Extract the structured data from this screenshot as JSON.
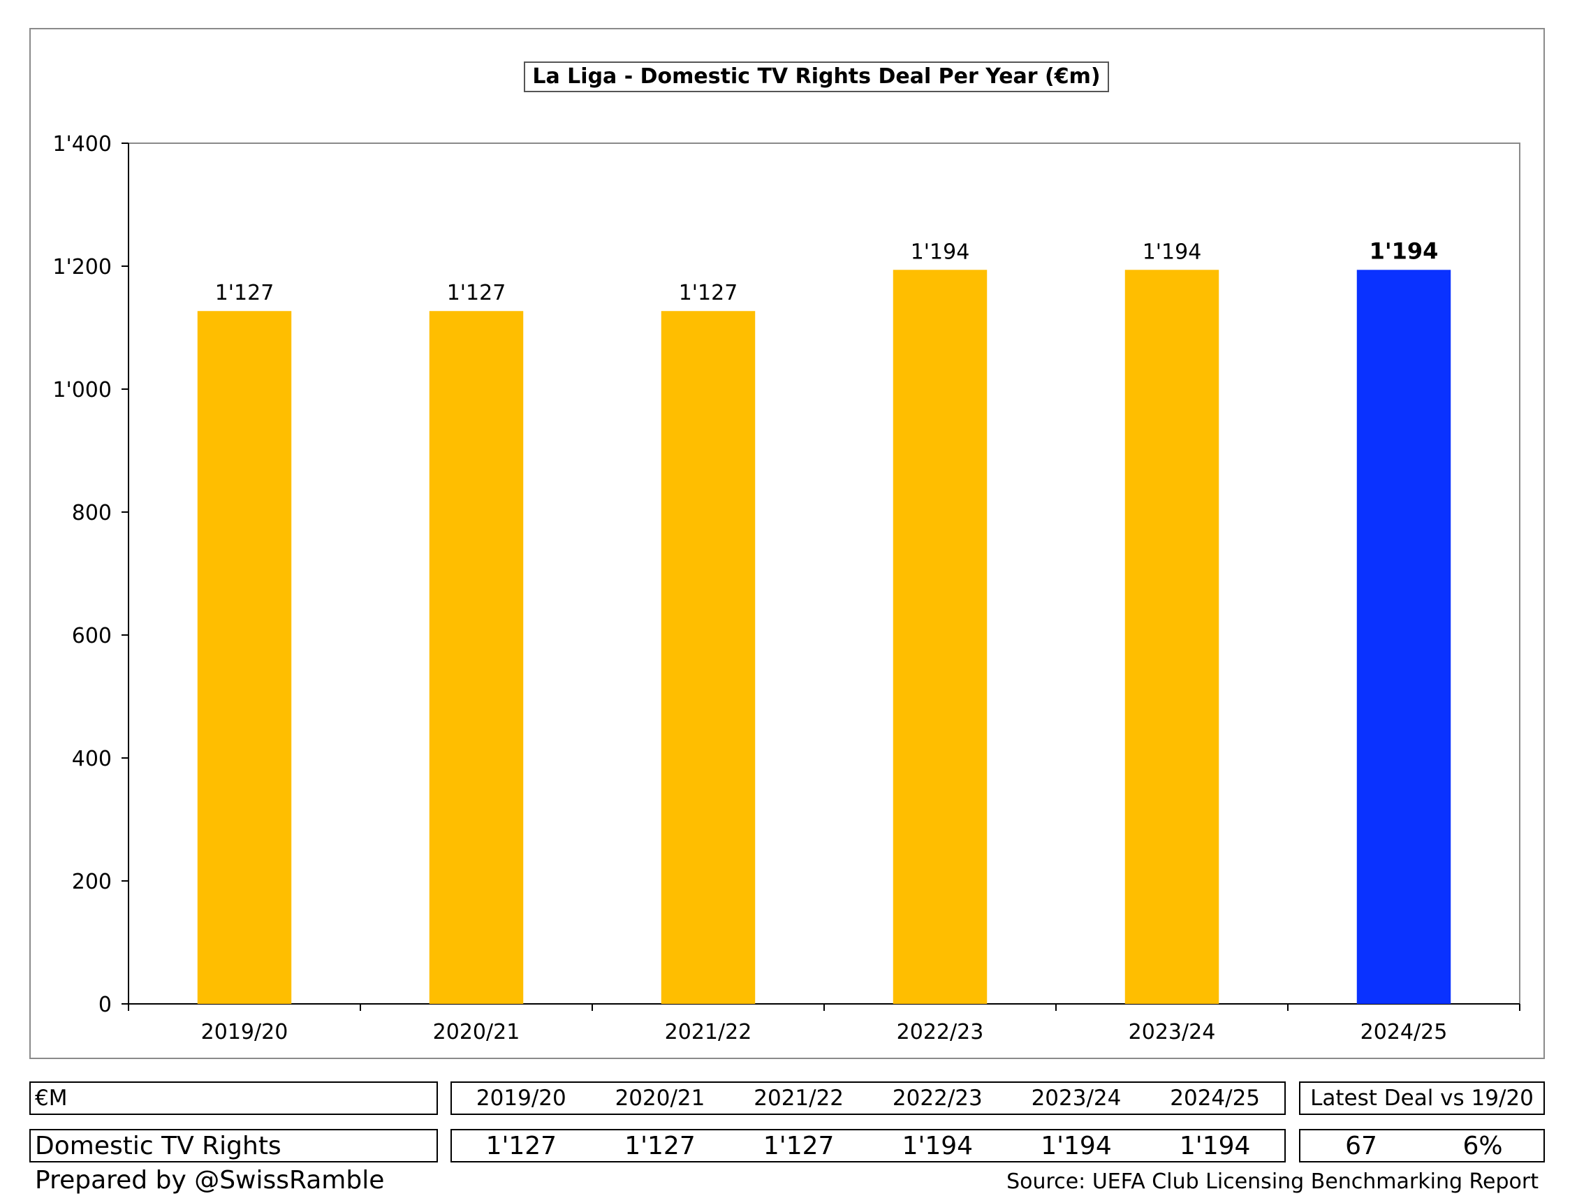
{
  "chart_data": {
    "type": "bar",
    "title": "La Liga - Domestic TV Rights Deal Per Year (€m)",
    "categories": [
      "2019/20",
      "2020/21",
      "2021/22",
      "2022/23",
      "2023/24",
      "2024/25"
    ],
    "values": [
      1127,
      1127,
      1127,
      1194,
      1194,
      1194
    ],
    "data_labels": [
      "1'127",
      "1'127",
      "1'127",
      "1'194",
      "1'194",
      "1'194"
    ],
    "highlight_index": 5,
    "bar_color": "#FFBE00",
    "highlight_color": "#0A32FF",
    "ylim": [
      0,
      1400
    ],
    "yticks": [
      0,
      200,
      400,
      600,
      800,
      1000,
      1200,
      1400
    ],
    "ytick_labels": [
      "0",
      "200",
      "400",
      "600",
      "800",
      "1'000",
      "1'200",
      "1'400"
    ],
    "xlabel": "",
    "ylabel": "",
    "grid": false,
    "legend": "none"
  },
  "table": {
    "unit_label": "€M",
    "years": [
      "2019/20",
      "2020/21",
      "2021/22",
      "2022/23",
      "2023/24",
      "2024/25"
    ],
    "comparison_header": "Latest Deal vs 19/20",
    "row_label": "Domestic TV Rights",
    "row_values": [
      "1'127",
      "1'127",
      "1'127",
      "1'194",
      "1'194",
      "1'194"
    ],
    "change_abs": "67",
    "change_pct": "6%"
  },
  "footer": {
    "prepared_by": "Prepared by @SwissRamble",
    "source": "Source: UEFA Club Licensing Benchmarking Report"
  }
}
